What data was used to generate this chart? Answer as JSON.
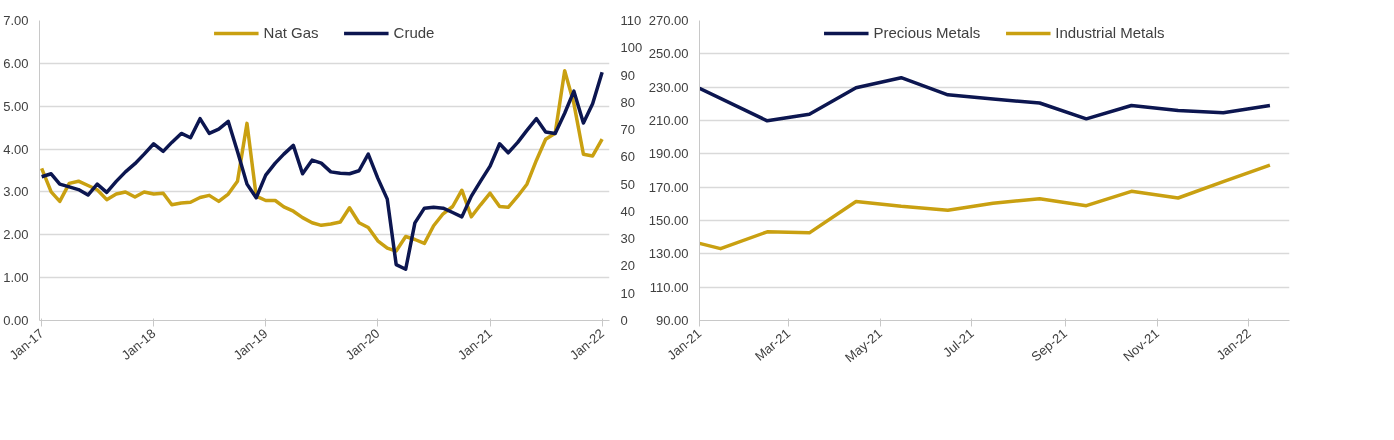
{
  "chart_data": [
    {
      "type": "line",
      "legend": "top",
      "grid": "y",
      "line_style": "solid",
      "xlim": [
        "2016-12-25",
        "2022-01-25"
      ],
      "xticks": [
        {
          "value": "2017-01-01",
          "label": "Jan-17"
        },
        {
          "value": "2018-01-01",
          "label": "Jan-18"
        },
        {
          "value": "2019-01-01",
          "label": "Jan-19"
        },
        {
          "value": "2020-01-01",
          "label": "Jan-20"
        },
        {
          "value": "2021-01-01",
          "label": "Jan-21"
        },
        {
          "value": "2022-01-01",
          "label": "Jan-22"
        }
      ],
      "ylim": [
        0,
        7
      ],
      "yticks": [
        {
          "value": 0,
          "label": "0.00"
        },
        {
          "value": 1,
          "label": "1.00"
        },
        {
          "value": 2,
          "label": "2.00"
        },
        {
          "value": 3,
          "label": "3.00"
        },
        {
          "value": 4,
          "label": "4.00"
        },
        {
          "value": 5,
          "label": "5.00"
        },
        {
          "value": 6,
          "label": "6.00"
        },
        {
          "value": 7,
          "label": "7.00"
        }
      ],
      "y2lim": [
        0,
        110
      ],
      "y2ticks": [
        0,
        10,
        20,
        30,
        40,
        50,
        60,
        70,
        80,
        90,
        100,
        110
      ],
      "x": [
        "2017-01",
        "2017-02",
        "2017-03",
        "2017-04",
        "2017-05",
        "2017-06",
        "2017-07",
        "2017-08",
        "2017-09",
        "2017-10",
        "2017-11",
        "2017-12",
        "2018-01",
        "2018-02",
        "2018-03",
        "2018-04",
        "2018-05",
        "2018-06",
        "2018-07",
        "2018-08",
        "2018-09",
        "2018-10",
        "2018-11",
        "2018-12",
        "2019-01",
        "2019-02",
        "2019-03",
        "2019-04",
        "2019-05",
        "2019-06",
        "2019-07",
        "2019-08",
        "2019-09",
        "2019-10",
        "2019-11",
        "2019-12",
        "2020-01",
        "2020-02",
        "2020-03",
        "2020-04",
        "2020-05",
        "2020-06",
        "2020-07",
        "2020-08",
        "2020-09",
        "2020-10",
        "2020-11",
        "2020-12",
        "2021-01",
        "2021-02",
        "2021-03",
        "2021-04",
        "2021-05",
        "2021-06",
        "2021-07",
        "2021-08",
        "2021-09",
        "2021-10",
        "2021-11",
        "2021-12",
        "2022-01"
      ],
      "series": [
        {
          "name": "Nat Gas",
          "color": "#c9a011",
          "values": [
            3.55,
            3.0,
            2.78,
            3.2,
            3.25,
            3.15,
            3.05,
            2.82,
            2.95,
            3.0,
            2.88,
            3.0,
            2.95,
            2.97,
            2.7,
            2.74,
            2.76,
            2.87,
            2.92,
            2.78,
            2.95,
            3.25,
            4.6,
            2.9,
            2.8,
            2.8,
            2.65,
            2.55,
            2.4,
            2.28,
            2.22,
            2.25,
            2.3,
            2.63,
            2.28,
            2.17,
            1.86,
            1.69,
            1.62,
            1.96,
            1.89,
            1.8,
            2.21,
            2.49,
            2.66,
            3.04,
            2.42,
            2.7,
            2.97,
            2.66,
            2.64,
            2.9,
            3.18,
            3.74,
            4.23,
            4.37,
            5.83,
            5.06,
            3.88,
            3.84,
            4.23
          ]
        },
        {
          "name": "Crude",
          "color": "#0c1650",
          "axis": "y2",
          "values": [
            52.7,
            53.8,
            50,
            49,
            48,
            46,
            50,
            47,
            51,
            54.5,
            57.5,
            61,
            64.8,
            62,
            65.3,
            68.6,
            67,
            74,
            68.6,
            70.2,
            73,
            62,
            50,
            45,
            53.3,
            57.7,
            61,
            64.2,
            53.8,
            58.8,
            57.7,
            54.5,
            54,
            53.8,
            54.9,
            61,
            52.2,
            44.5,
            20.5,
            18.8,
            35.8,
            41.2,
            41.5,
            41.2,
            39.6,
            38,
            45.6,
            51.1,
            56.6,
            64.8,
            61.5,
            65.3,
            69.7,
            74,
            69.1,
            68.6,
            76,
            84.1,
            72.4,
            79.5,
            91
          ]
        }
      ]
    },
    {
      "type": "line",
      "legend": "top",
      "grid": "y",
      "line_style": "solid",
      "xlim": [
        "2021-01-01",
        "2022-01-28"
      ],
      "xticks": [
        {
          "value": "2021-01-01",
          "label": "Jan-21"
        },
        {
          "value": "2021-03-01",
          "label": "Mar-21"
        },
        {
          "value": "2021-05-01",
          "label": "May-21"
        },
        {
          "value": "2021-07-01",
          "label": "Jul-21"
        },
        {
          "value": "2021-09-01",
          "label": "Sep-21"
        },
        {
          "value": "2021-11-01",
          "label": "Nov-21"
        },
        {
          "value": "2022-01-01",
          "label": "Jan-22"
        }
      ],
      "ylim": [
        90,
        270
      ],
      "yticks": [
        {
          "value": 90,
          "label": "90.00"
        },
        {
          "value": 110,
          "label": "110.00"
        },
        {
          "value": 130,
          "label": "130.00"
        },
        {
          "value": 150,
          "label": "150.00"
        },
        {
          "value": 170,
          "label": "170.00"
        },
        {
          "value": 190,
          "label": "190.00"
        },
        {
          "value": 210,
          "label": "210.00"
        },
        {
          "value": 230,
          "label": "230.00"
        },
        {
          "value": 250,
          "label": "250.00"
        },
        {
          "value": 270,
          "label": "270.00"
        }
      ],
      "series": [
        {
          "name": "Precious Metals",
          "color": "#0c1650",
          "x": [
            "2021-01-01",
            "2021-02-15",
            "2021-03-15",
            "2021-04-15",
            "2021-05-15",
            "2021-06-15",
            "2021-07-15",
            "2021-08-15",
            "2021-09-15",
            "2021-10-15",
            "2021-11-15",
            "2021-12-15",
            "2022-01-15"
          ],
          "values": [
            229.3,
            209.8,
            213.8,
            229.7,
            235.7,
            225.4,
            222.9,
            220.5,
            211,
            219,
            216,
            214.6,
            219
          ]
        },
        {
          "name": "Industrial Metals",
          "color": "#c9a011",
          "x": [
            "2021-01-01",
            "2021-01-15",
            "2021-02-15",
            "2021-03-15",
            "2021-04-15",
            "2021-05-15",
            "2021-06-15",
            "2021-07-15",
            "2021-08-15",
            "2021-09-15",
            "2021-10-15",
            "2021-11-15",
            "2021-12-15",
            "2022-01-15"
          ],
          "values": [
            136.3,
            133.1,
            143.2,
            142.6,
            161.4,
            158.5,
            156.2,
            160.4,
            163.1,
            158.9,
            167.5,
            163.5,
            173.3,
            183.2
          ]
        }
      ]
    }
  ]
}
